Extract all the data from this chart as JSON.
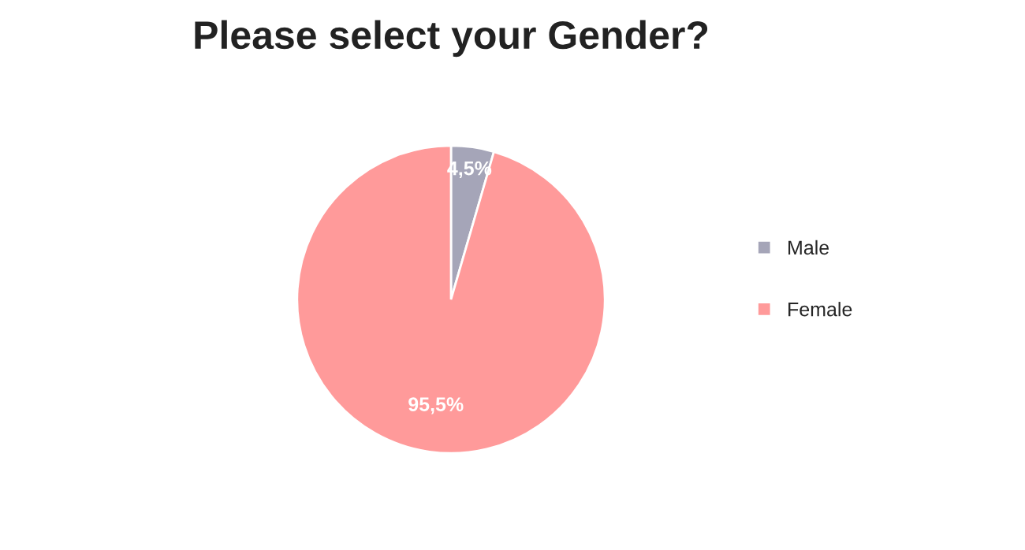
{
  "chart_data": {
    "type": "pie",
    "title": "Please select your Gender?",
    "categories": [
      "Male",
      "Female"
    ],
    "values": [
      4.5,
      95.5
    ],
    "colors": [
      "#a5a5b8",
      "#ff9a9a"
    ],
    "value_labels": [
      "4,5%",
      "95,5%"
    ],
    "legend": "right"
  }
}
